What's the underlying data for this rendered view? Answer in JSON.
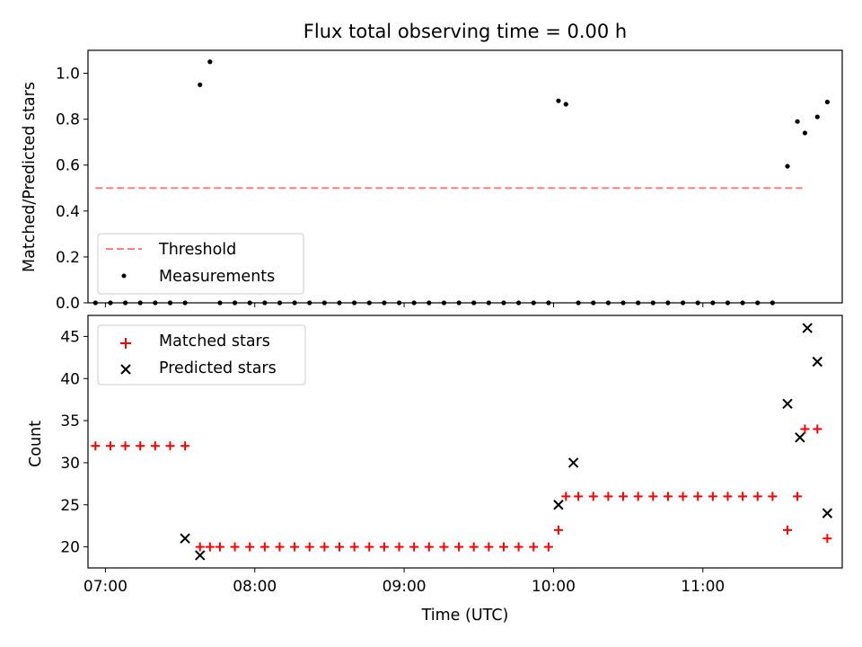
{
  "chart_data": [
    {
      "type": "scatter",
      "title": "Flux total observing time = 0.00 h",
      "xlabel": "",
      "ylabel": "Matched/Predicted stars",
      "ylim": [
        0.0,
        1.1
      ],
      "xlim": [
        "06:53",
        "11:56"
      ],
      "y_ticks": [
        "0.0",
        "0.2",
        "0.4",
        "0.6",
        "0.8",
        "1.0"
      ],
      "x_ticks": [
        "07:00",
        "08:00",
        "09:00",
        "10:00",
        "11:00"
      ],
      "x_tick_labels_visible": false,
      "legend": {
        "placement": "lower-left",
        "entries": [
          {
            "label": "Threshold",
            "marker": "dashed-line",
            "color": "#ff7f7f"
          },
          {
            "label": "Measurements",
            "marker": "dot",
            "color": "#000000"
          }
        ]
      },
      "threshold": {
        "name": "Threshold",
        "y": 0.5,
        "x_start": "06:56",
        "x_end": "11:40",
        "color": "#ff7f7f",
        "style": "dashed"
      },
      "series": [
        {
          "name": "Measurements",
          "marker": "dot",
          "color": "#000000",
          "x": [
            "06:56",
            "07:02",
            "07:08",
            "07:14",
            "07:20",
            "07:26",
            "07:32",
            "07:38",
            "07:42",
            "07:46",
            "07:52",
            "07:58",
            "08:04",
            "08:10",
            "08:16",
            "08:22",
            "08:28",
            "08:34",
            "08:40",
            "08:46",
            "08:52",
            "08:58",
            "09:04",
            "09:10",
            "09:16",
            "09:22",
            "09:28",
            "09:34",
            "09:40",
            "09:46",
            "09:52",
            "09:58",
            "10:02",
            "10:05",
            "10:10",
            "10:16",
            "10:22",
            "10:28",
            "10:34",
            "10:40",
            "10:46",
            "10:52",
            "10:58",
            "11:04",
            "11:10",
            "11:16",
            "11:22",
            "11:28",
            "11:34",
            "11:38",
            "11:41",
            "11:46",
            "11:50"
          ],
          "y": [
            0,
            0,
            0,
            0,
            0,
            0,
            0,
            0.95,
            1.05,
            0,
            0,
            0,
            0,
            0,
            0,
            0,
            0,
            0,
            0,
            0,
            0,
            0,
            0,
            0,
            0,
            0,
            0,
            0,
            0,
            0,
            0,
            0,
            0.88,
            0.865,
            0,
            0,
            0,
            0,
            0,
            0,
            0,
            0,
            0,
            0,
            0,
            0,
            0,
            0,
            0.595,
            0.79,
            0.74,
            0.81,
            0.875
          ]
        }
      ]
    },
    {
      "type": "scatter",
      "title": "",
      "xlabel": "Time (UTC)",
      "ylabel": "Count",
      "ylim": [
        17.5,
        47.5
      ],
      "xlim": [
        "06:53",
        "11:56"
      ],
      "y_ticks": [
        "20",
        "25",
        "30",
        "35",
        "40",
        "45"
      ],
      "x_ticks": [
        "07:00",
        "08:00",
        "09:00",
        "10:00",
        "11:00"
      ],
      "legend": {
        "placement": "upper-left",
        "entries": [
          {
            "label": "Matched stars",
            "marker": "plus",
            "color": "#ff0000"
          },
          {
            "label": "Predicted stars",
            "marker": "x",
            "color": "#000000"
          }
        ]
      },
      "series": [
        {
          "name": "Matched stars",
          "marker": "plus",
          "color": "#ff0000",
          "x": [
            "06:56",
            "07:02",
            "07:08",
            "07:14",
            "07:20",
            "07:26",
            "07:32",
            "07:38",
            "07:42",
            "07:46",
            "07:52",
            "07:58",
            "08:04",
            "08:10",
            "08:16",
            "08:22",
            "08:28",
            "08:34",
            "08:40",
            "08:46",
            "08:52",
            "08:58",
            "09:04",
            "09:10",
            "09:16",
            "09:22",
            "09:28",
            "09:34",
            "09:40",
            "09:46",
            "09:52",
            "09:58",
            "10:02",
            "10:05",
            "10:10",
            "10:16",
            "10:22",
            "10:28",
            "10:34",
            "10:40",
            "10:46",
            "10:52",
            "10:58",
            "11:04",
            "11:10",
            "11:16",
            "11:22",
            "11:28",
            "11:34",
            "11:38",
            "11:41",
            "11:46",
            "11:50"
          ],
          "y": [
            32,
            32,
            32,
            32,
            32,
            32,
            32,
            20,
            20,
            20,
            20,
            20,
            20,
            20,
            20,
            20,
            20,
            20,
            20,
            20,
            20,
            20,
            20,
            20,
            20,
            20,
            20,
            20,
            20,
            20,
            20,
            20,
            22,
            26,
            26,
            26,
            26,
            26,
            26,
            26,
            26,
            26,
            26,
            26,
            26,
            26,
            26,
            26,
            22,
            26,
            34,
            34,
            21
          ]
        },
        {
          "name": "Predicted stars",
          "marker": "x",
          "color": "#000000",
          "x": [
            "07:32",
            "07:38",
            "10:02",
            "10:08",
            "11:34",
            "11:39",
            "11:42",
            "11:46",
            "11:50"
          ],
          "y": [
            21,
            19,
            25,
            30,
            37,
            33,
            46,
            42,
            24
          ]
        }
      ]
    }
  ]
}
